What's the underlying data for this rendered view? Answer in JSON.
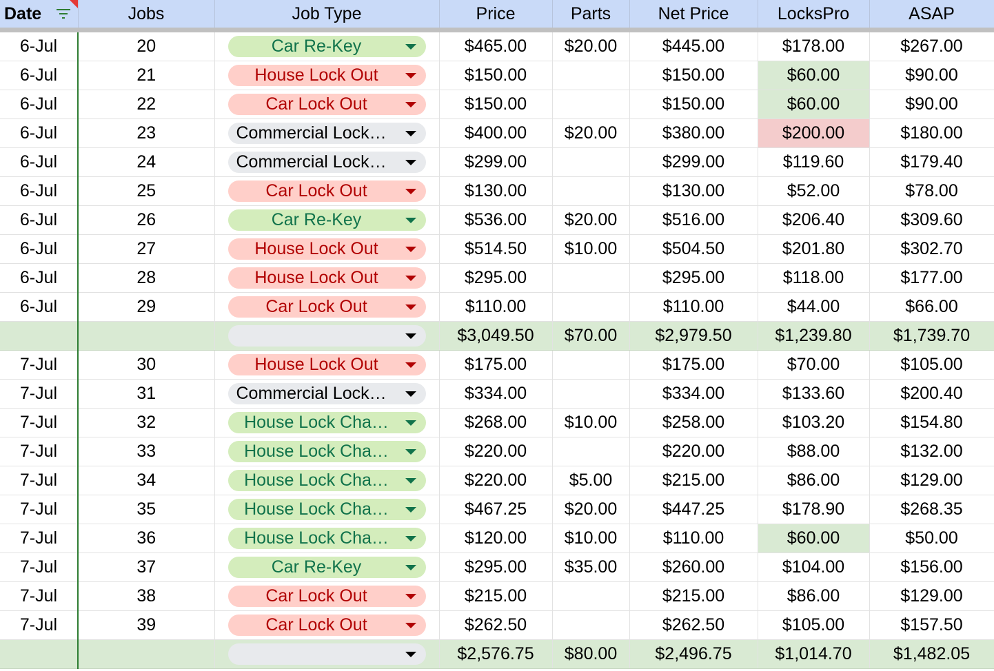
{
  "columns": [
    "Date",
    "Jobs",
    "Job Type",
    "Price",
    "Parts",
    "Net Price",
    "LocksPro",
    "ASAP"
  ],
  "chip_colors": {
    "green_bg": "#d4edbc",
    "green_text": "#11734b",
    "red_bg": "#ffcfc9",
    "red_text": "#b10202",
    "gray_bg": "#e8eaed"
  },
  "highlight_colors": {
    "green": "#d9ead3",
    "red": "#f4cccc"
  },
  "rows": [
    {
      "kind": "data",
      "date": "6-Jul",
      "jobs": "20",
      "job_type": "Car Re-Key",
      "type_color": "green",
      "price": "$465.00",
      "parts": "$20.00",
      "net": "$445.00",
      "lockspro": "$178.00",
      "asap": "$267.00"
    },
    {
      "kind": "data",
      "date": "6-Jul",
      "jobs": "21",
      "job_type": "House Lock Out",
      "type_color": "red",
      "price": "$150.00",
      "parts": "",
      "net": "$150.00",
      "lockspro": "$60.00",
      "lockspro_hl": "green",
      "asap": "$90.00"
    },
    {
      "kind": "data",
      "date": "6-Jul",
      "jobs": "22",
      "job_type": "Car Lock Out",
      "type_color": "red",
      "price": "$150.00",
      "parts": "",
      "net": "$150.00",
      "lockspro": "$60.00",
      "lockspro_hl": "green",
      "asap": "$90.00"
    },
    {
      "kind": "data",
      "date": "6-Jul",
      "jobs": "23",
      "job_type": "Commercial Lock…",
      "type_color": "gray",
      "price": "$400.00",
      "parts": "$20.00",
      "net": "$380.00",
      "lockspro": "$200.00",
      "lockspro_hl": "red",
      "asap": "$180.00"
    },
    {
      "kind": "data",
      "date": "6-Jul",
      "jobs": "24",
      "job_type": "Commercial Lock…",
      "type_color": "gray",
      "price": "$299.00",
      "parts": "",
      "net": "$299.00",
      "lockspro": "$119.60",
      "asap": "$179.40"
    },
    {
      "kind": "data",
      "date": "6-Jul",
      "jobs": "25",
      "job_type": "Car Lock Out",
      "type_color": "red",
      "price": "$130.00",
      "parts": "",
      "net": "$130.00",
      "lockspro": "$52.00",
      "asap": "$78.00"
    },
    {
      "kind": "data",
      "date": "6-Jul",
      "jobs": "26",
      "job_type": "Car Re-Key",
      "type_color": "green",
      "price": "$536.00",
      "parts": "$20.00",
      "net": "$516.00",
      "lockspro": "$206.40",
      "asap": "$309.60"
    },
    {
      "kind": "data",
      "date": "6-Jul",
      "jobs": "27",
      "job_type": "House Lock Out",
      "type_color": "red",
      "price": "$514.50",
      "parts": "$10.00",
      "net": "$504.50",
      "lockspro": "$201.80",
      "asap": "$302.70"
    },
    {
      "kind": "data",
      "date": "6-Jul",
      "jobs": "28",
      "job_type": "House Lock Out",
      "type_color": "red",
      "price": "$295.00",
      "parts": "",
      "net": "$295.00",
      "lockspro": "$118.00",
      "asap": "$177.00"
    },
    {
      "kind": "data",
      "date": "6-Jul",
      "jobs": "29",
      "job_type": "Car Lock Out",
      "type_color": "red",
      "price": "$110.00",
      "parts": "",
      "net": "$110.00",
      "lockspro": "$44.00",
      "asap": "$66.00"
    },
    {
      "kind": "total",
      "date": "",
      "jobs": "",
      "job_type": "",
      "type_color": "gray",
      "price": "$3,049.50",
      "parts": "$70.00",
      "net": "$2,979.50",
      "lockspro": "$1,239.80",
      "asap": "$1,739.70"
    },
    {
      "kind": "data",
      "date": "7-Jul",
      "jobs": "30",
      "job_type": "House Lock Out",
      "type_color": "red",
      "price": "$175.00",
      "parts": "",
      "net": "$175.00",
      "lockspro": "$70.00",
      "asap": "$105.00"
    },
    {
      "kind": "data",
      "date": "7-Jul",
      "jobs": "31",
      "job_type": "Commercial Lock…",
      "type_color": "gray",
      "price": "$334.00",
      "parts": "",
      "net": "$334.00",
      "lockspro": "$133.60",
      "asap": "$200.40"
    },
    {
      "kind": "data",
      "date": "7-Jul",
      "jobs": "32",
      "job_type": "House Lock Cha…",
      "type_color": "green",
      "price": "$268.00",
      "parts": "$10.00",
      "net": "$258.00",
      "lockspro": "$103.20",
      "asap": "$154.80"
    },
    {
      "kind": "data",
      "date": "7-Jul",
      "jobs": "33",
      "job_type": "House Lock Cha…",
      "type_color": "green",
      "price": "$220.00",
      "parts": "",
      "net": "$220.00",
      "lockspro": "$88.00",
      "asap": "$132.00"
    },
    {
      "kind": "data",
      "date": "7-Jul",
      "jobs": "34",
      "job_type": "House Lock Cha…",
      "type_color": "green",
      "price": "$220.00",
      "parts": "$5.00",
      "net": "$215.00",
      "lockspro": "$86.00",
      "asap": "$129.00"
    },
    {
      "kind": "data",
      "date": "7-Jul",
      "jobs": "35",
      "job_type": "House Lock Cha…",
      "type_color": "green",
      "price": "$467.25",
      "parts": "$20.00",
      "net": "$447.25",
      "lockspro": "$178.90",
      "asap": "$268.35"
    },
    {
      "kind": "data",
      "date": "7-Jul",
      "jobs": "36",
      "job_type": "House Lock Cha…",
      "type_color": "green",
      "price": "$120.00",
      "parts": "$10.00",
      "net": "$110.00",
      "lockspro": "$60.00",
      "lockspro_hl": "green",
      "asap": "$50.00"
    },
    {
      "kind": "data",
      "date": "7-Jul",
      "jobs": "37",
      "job_type": "Car Re-Key",
      "type_color": "green",
      "price": "$295.00",
      "parts": "$35.00",
      "net": "$260.00",
      "lockspro": "$104.00",
      "asap": "$156.00"
    },
    {
      "kind": "data",
      "date": "7-Jul",
      "jobs": "38",
      "job_type": "Car Lock Out",
      "type_color": "red",
      "price": "$215.00",
      "parts": "",
      "net": "$215.00",
      "lockspro": "$86.00",
      "asap": "$129.00"
    },
    {
      "kind": "data",
      "date": "7-Jul",
      "jobs": "39",
      "job_type": "Car Lock Out",
      "type_color": "red",
      "price": "$262.50",
      "parts": "",
      "net": "$262.50",
      "lockspro": "$105.00",
      "asap": "$157.50"
    },
    {
      "kind": "total",
      "date": "",
      "jobs": "",
      "job_type": "",
      "type_color": "gray",
      "price": "$2,576.75",
      "parts": "$80.00",
      "net": "$2,496.75",
      "lockspro": "$1,014.70",
      "asap": "$1,482.05"
    }
  ]
}
